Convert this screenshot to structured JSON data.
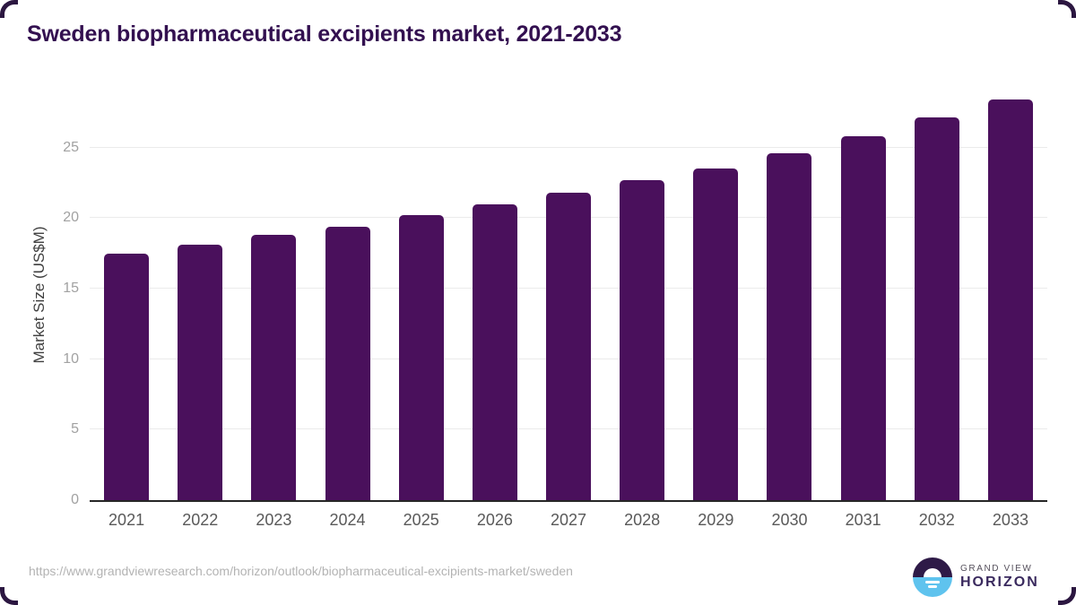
{
  "title": "Sweden biopharmaceutical excipients market, 2021-2033",
  "chart_data": {
    "type": "bar",
    "title": "Sweden biopharmaceutical excipients market, 2021-2033",
    "categories": [
      "2021",
      "2022",
      "2023",
      "2024",
      "2025",
      "2026",
      "2027",
      "2028",
      "2029",
      "2030",
      "2031",
      "2032",
      "2033"
    ],
    "values": [
      17.5,
      18.1,
      18.8,
      19.4,
      20.2,
      21.0,
      21.8,
      22.7,
      23.5,
      24.6,
      25.8,
      27.1,
      28.4
    ],
    "xlabel": "",
    "ylabel": "Market Size (US$M)",
    "ylim": [
      0,
      29.1
    ],
    "yticks": [
      0,
      5,
      10,
      15,
      20,
      25
    ],
    "grid": true,
    "legend": "none",
    "bar_color": "#4a105c",
    "gridline_color": "#ebebeb",
    "axis_line_color": "#262626"
  },
  "footer": {
    "source_url": "https://www.grandviewresearch.com/horizon/outlook/biopharmaceutical-excipients-market/sweden",
    "logo": {
      "line1": "GRAND VIEW",
      "line2": "HORIZON"
    }
  },
  "colors": {
    "title_text": "#331050",
    "y_axis_title_text": "#404040",
    "y_tick_text": "#a1a1a1",
    "x_tick_text": "#595959",
    "source_text": "#b3b3b3",
    "logo_dark": "#2e1a47",
    "logo_blue": "#5fc3ee",
    "corner_border": "#2b1640"
  }
}
